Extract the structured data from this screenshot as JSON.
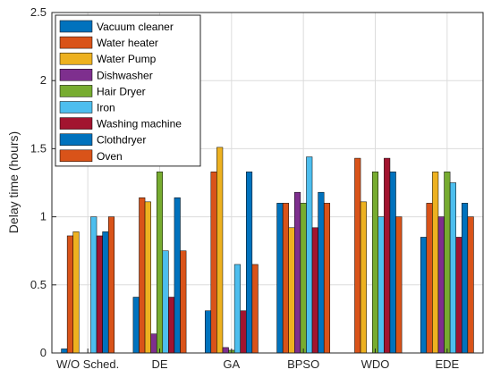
{
  "chart_data": {
    "type": "bar",
    "categories": [
      "W/O Sched.",
      "DE",
      "GA",
      "BPSO",
      "WDO",
      "EDE"
    ],
    "ylabel": "Delay time (hours)",
    "xlabel": "",
    "ylim": [
      0,
      2.5
    ],
    "yticks": [
      "0",
      "0.5",
      "1",
      "1.5",
      "2",
      "2.5"
    ],
    "grid": true,
    "legend_position": "top-left",
    "series": [
      {
        "name": "Vacuum cleaner",
        "color": "#0072BD",
        "values": [
          0.03,
          0.41,
          0.31,
          1.1,
          0.0,
          0.85
        ]
      },
      {
        "name": "Water heater",
        "color": "#D95319",
        "values": [
          0.86,
          1.14,
          1.33,
          1.1,
          1.43,
          1.1
        ]
      },
      {
        "name": "Water Pump",
        "color": "#EDB120",
        "values": [
          0.89,
          1.11,
          1.51,
          0.92,
          1.11,
          1.33
        ]
      },
      {
        "name": "Dishwasher",
        "color": "#7E2F8E",
        "values": [
          0.0,
          0.14,
          0.04,
          1.18,
          0.0,
          1.0
        ]
      },
      {
        "name": "Hair Dryer",
        "color": "#77AC30",
        "values": [
          0.0,
          1.33,
          0.02,
          1.1,
          1.33,
          1.33
        ]
      },
      {
        "name": "Iron",
        "color": "#4DBEEE",
        "values": [
          1.0,
          0.75,
          0.65,
          1.44,
          1.0,
          1.25
        ]
      },
      {
        "name": "Washing machine",
        "color": "#A2142F",
        "values": [
          0.86,
          0.41,
          0.31,
          0.92,
          1.43,
          0.85
        ]
      },
      {
        "name": "Clothdryer",
        "color": "#0072BD",
        "values": [
          0.89,
          1.14,
          1.33,
          1.18,
          1.33,
          1.1
        ]
      },
      {
        "name": "Oven",
        "color": "#D95319",
        "values": [
          1.0,
          0.75,
          0.65,
          1.1,
          1.0,
          1.0
        ]
      }
    ]
  }
}
